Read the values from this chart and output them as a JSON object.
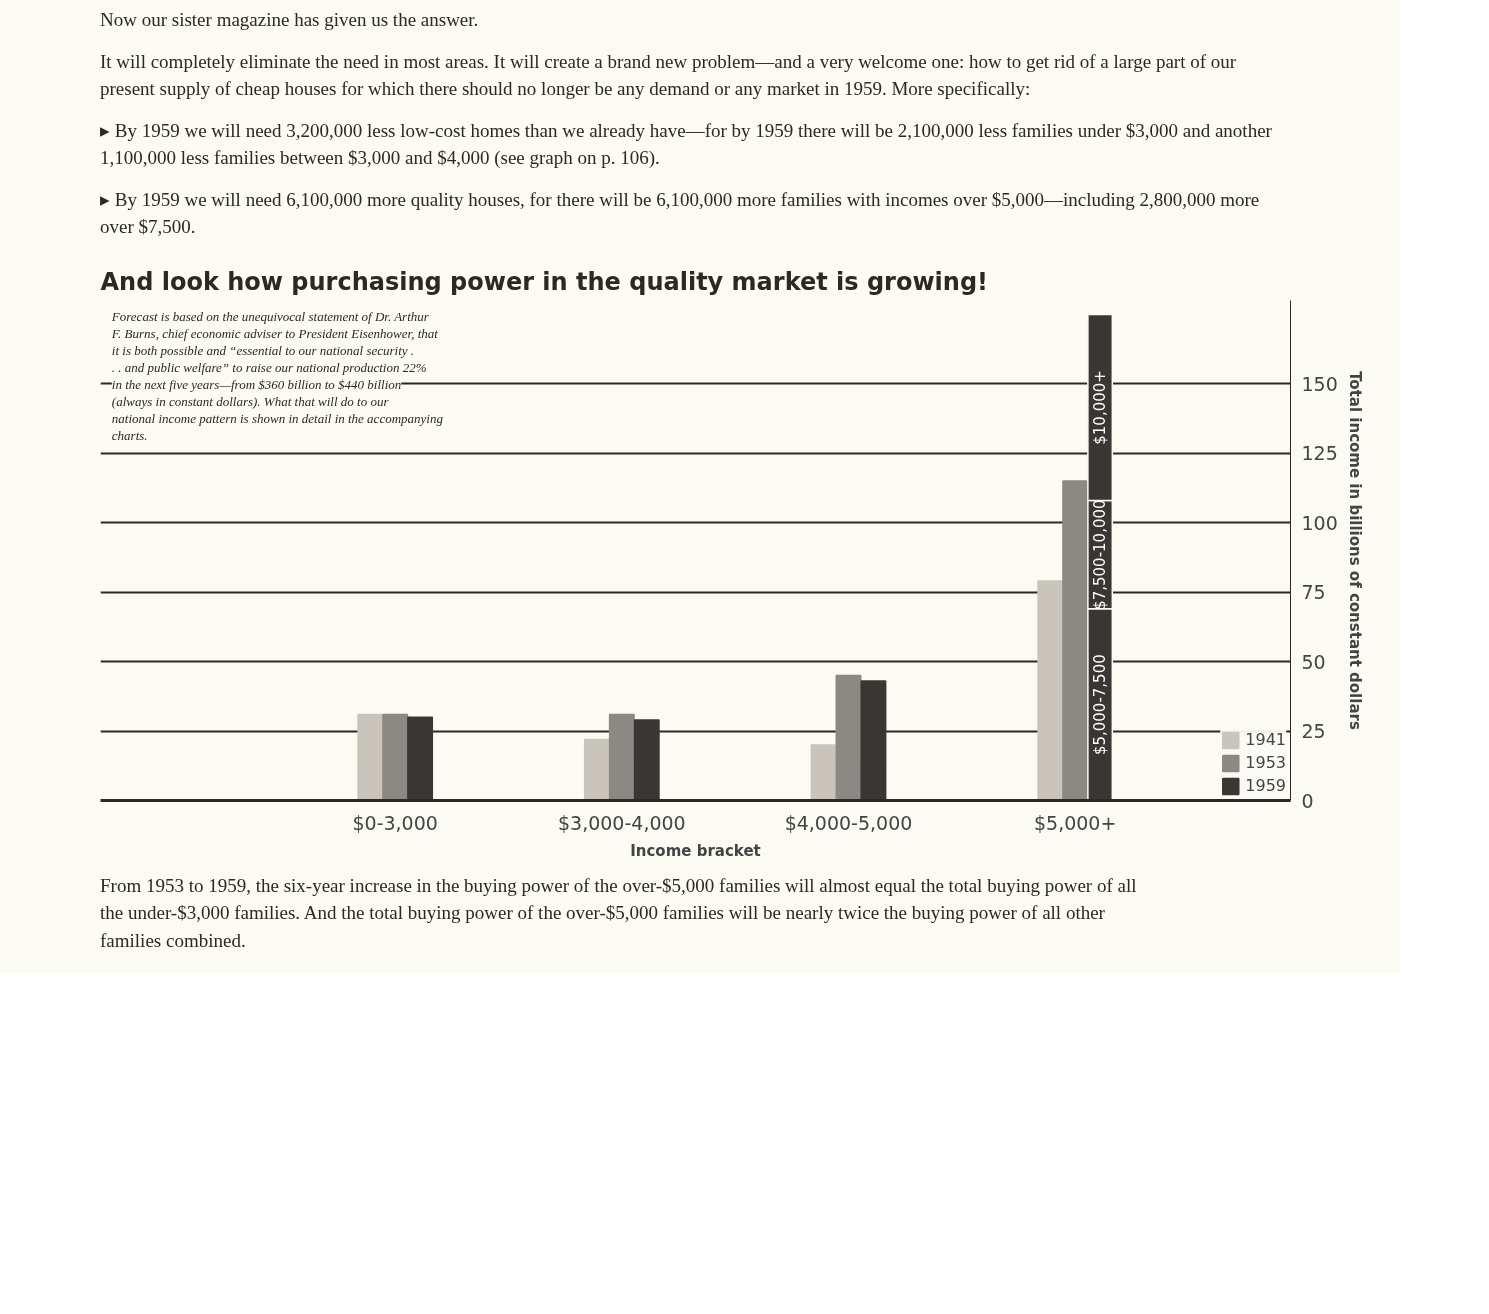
{
  "chart_data": {
    "type": "bar",
    "title": "And look how purchasing power in the quality market is growing!",
    "xlabel": "Income bracket",
    "ylabel": "Total income in billions of constant dollars",
    "categories": [
      "$0-3,000",
      "$3,000-4,000",
      "$4,000-5,000",
      "$5,000+"
    ],
    "series": [
      {
        "name": "1941",
        "color": "#c9c5bd",
        "values": [
          31,
          22,
          20,
          79
        ]
      },
      {
        "name": "1953",
        "color": "#8c8883",
        "values": [
          31,
          31,
          45,
          115
        ]
      },
      {
        "name": "1959",
        "color": "#3a3634",
        "values": [
          30,
          29,
          43,
          null
        ]
      },
      {
        "name": "$5,000-7,500",
        "color": "#3a3634",
        "values": [
          null,
          null,
          null,
          69
        ],
        "base": [
          null,
          null,
          null,
          0
        ]
      },
      {
        "name": "$7,500-10,000",
        "color": "#3a3634",
        "values": [
          null,
          null,
          null,
          39
        ],
        "base": [
          null,
          null,
          null,
          69
        ]
      },
      {
        "name": "$10,000+",
        "color": "#3a3634",
        "values": [
          null,
          null,
          null,
          67
        ],
        "base": [
          null,
          null,
          null,
          108
        ]
      }
    ],
    "ylim": [
      0,
      180
    ],
    "yticks": [
      0,
      25,
      50,
      75,
      100,
      125,
      150
    ],
    "grid": "y",
    "legend": "bottom right",
    "annotations": [
      "Now our sister magazine has given us the answer.",
      "It will completely eliminate the need in most areas. It will create a brand new problem—and a very welcome one: how to get rid of a large part of our present supply of cheap houses for which there should no longer be any demand or any market in 1959. More specifically:",
      "▸ By 1959 we will need 3,200,000 less low-cost homes than we already have—for by 1959 there will be 2,100,000 less families under $3,000 and another 1,100,000 less families between $3,000 and $4,000 (see graph on p. 106).",
      "▸ By 1959 we will need 6,100,000 more quality houses, for there will be 6,100,000 more families with incomes over $5,000—including 2,800,000 more over $7,500.",
      "Forecast is based on the unequivocal statement of Dr. Arthur F. Burns, chief economic adviser to President Eisenhower, that it is both possible and “essential to our national security . . . and public welfare” to raise our national production 22% in the next five years—from $360 billion to $440 billion (always in constant dollars). What that will do to our national income pattern is shown in detail in the accompanying charts.",
      "From 1953 to 1959, the six-year increase in the buying power of the over-$5,000 families will almost equal the total buying power of all the under-$3,000 families. And the total buying power of the over-$5,000 families will be nearly twice the buying power of all other families combined."
    ]
  }
}
